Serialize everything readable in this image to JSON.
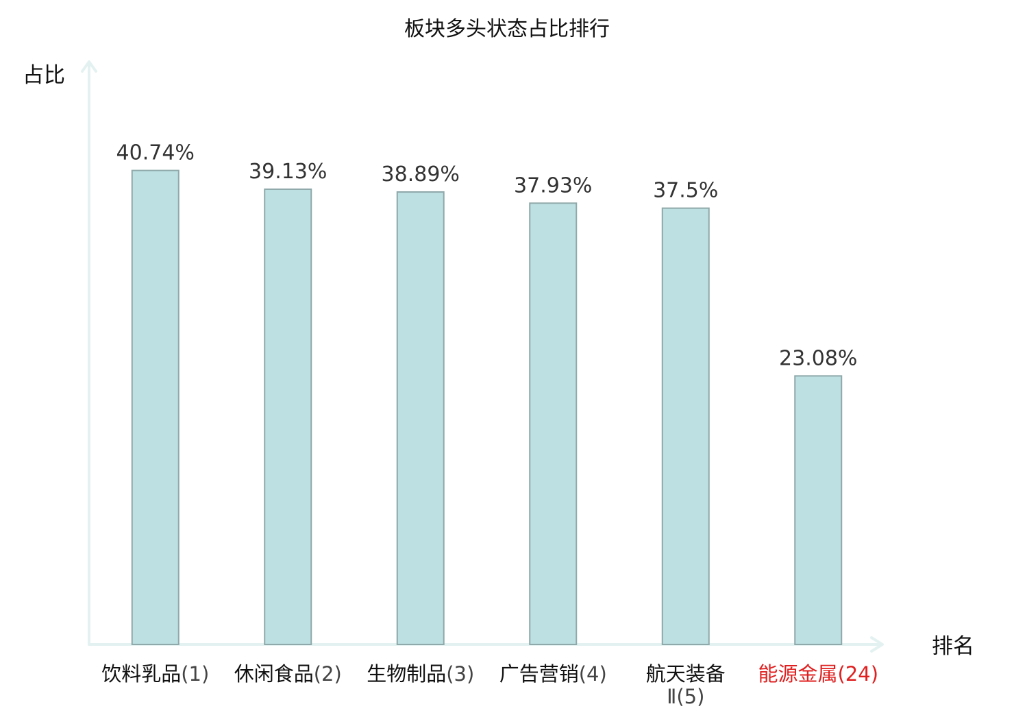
{
  "chart_data": {
    "type": "bar",
    "title": "板块多头状态占比排行",
    "ylabel": "占比",
    "xlabel": "排名",
    "ylim": [
      0,
      50
    ],
    "grid": false,
    "legend": "none",
    "categories": [
      {
        "name": "饮料乳品",
        "rank": "(1)",
        "highlight": false
      },
      {
        "name": "休闲食品",
        "rank": "(2)",
        "highlight": false
      },
      {
        "name": "生物制品",
        "rank": "(3)",
        "highlight": false
      },
      {
        "name": "广告营销",
        "rank": "(4)",
        "highlight": false
      },
      {
        "name": "航天装备",
        "rank": "Ⅱ(5)",
        "highlight": false
      },
      {
        "name": "能源金属",
        "rank": "(24)",
        "highlight": true
      }
    ],
    "values": [
      40.74,
      39.13,
      38.89,
      37.93,
      37.5,
      23.08
    ],
    "value_labels": [
      "40.74%",
      "39.13%",
      "38.89%",
      "37.93%",
      "37.5%",
      "23.08%"
    ]
  },
  "colors": {
    "bar_fill": "#bde0e3",
    "bar_stroke": "#8fa8a9",
    "axis": "#e3f2f0",
    "label_text": "#111111",
    "rank_text": "#444444",
    "highlight": "#e02020"
  }
}
